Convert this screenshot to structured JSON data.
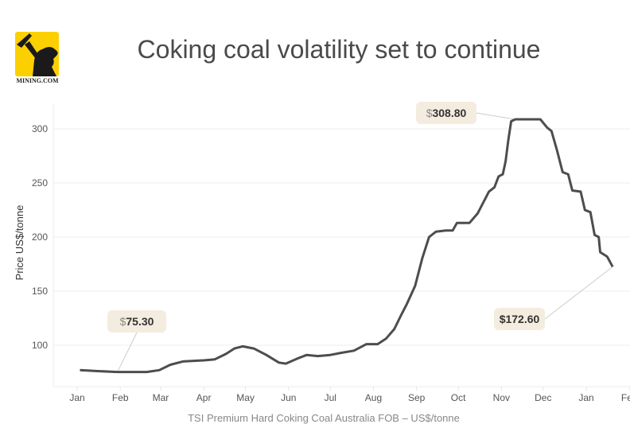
{
  "title": "Coking coal volatility set to continue",
  "logo_text": "MINING.COM",
  "footer": "TSI Premium Hard Coking Coal Australia FOB – US$/tonne",
  "chart_data": {
    "type": "line",
    "title": "Coking coal volatility set to continue",
    "xlabel": "",
    "ylabel": "Price US$/tonne",
    "ylim": [
      62,
      320
    ],
    "yticks": [
      100,
      150,
      200,
      250,
      300
    ],
    "xlim": [
      "2015-12-25",
      "2017-02-08"
    ],
    "xticks": [
      {
        "date": "2016-01-01",
        "label": "Jan"
      },
      {
        "date": "2016-02-01",
        "label": "Feb"
      },
      {
        "date": "2016-03-01",
        "label": "Mar"
      },
      {
        "date": "2016-04-01",
        "label": "Apr"
      },
      {
        "date": "2016-05-01",
        "label": "May"
      },
      {
        "date": "2016-06-01",
        "label": "Jun"
      },
      {
        "date": "2016-07-01",
        "label": "Jul"
      },
      {
        "date": "2016-08-01",
        "label": "Aug"
      },
      {
        "date": "2016-09-01",
        "label": "Sep"
      },
      {
        "date": "2016-10-01",
        "label": "Oct"
      },
      {
        "date": "2016-11-01",
        "label": "Nov"
      },
      {
        "date": "2016-12-01",
        "label": "Dec"
      },
      {
        "date": "2017-01-01",
        "label": "Jan"
      },
      {
        "date": "2017-02-01",
        "label": "Feb"
      }
    ],
    "grid": "horizontal",
    "line_color": "#4d4d4d",
    "series": [
      {
        "x": [
          "2016-01-03",
          "2016-01-17",
          "2016-01-30",
          "2016-02-20",
          "2016-02-29",
          "2016-03-08",
          "2016-03-17",
          "2016-04-01",
          "2016-04-09",
          "2016-04-17",
          "2016-04-23",
          "2016-04-29",
          "2016-05-07",
          "2016-05-16",
          "2016-05-25",
          "2016-05-30",
          "2016-06-08",
          "2016-06-14",
          "2016-06-22",
          "2016-07-01",
          "2016-07-09",
          "2016-07-18",
          "2016-07-27",
          "2016-08-04",
          "2016-08-10",
          "2016-08-16",
          "2016-08-21",
          "2016-08-25",
          "2016-08-31",
          "2016-09-05",
          "2016-09-10",
          "2016-09-15",
          "2016-09-22",
          "2016-09-27",
          "2016-09-30",
          "2016-10-09",
          "2016-10-15",
          "2016-10-19",
          "2016-10-23",
          "2016-10-27",
          "2016-10-30",
          "2016-11-02",
          "2016-11-04",
          "2016-11-06",
          "2016-11-08",
          "2016-11-11",
          "2016-11-29",
          "2016-12-04",
          "2016-12-07",
          "2016-12-11",
          "2016-12-15",
          "2016-12-19",
          "2016-12-22",
          "2016-12-28",
          "2016-12-31",
          "2017-01-04",
          "2017-01-07",
          "2017-01-10",
          "2017-01-11",
          "2017-01-16",
          "2017-01-20"
        ],
        "y": [
          77,
          76,
          75.3,
          75.3,
          77,
          82,
          85,
          86,
          87,
          92,
          97,
          99,
          97,
          91,
          84,
          83,
          88,
          91,
          90,
          91,
          93,
          95,
          101,
          101,
          106,
          115,
          128,
          138,
          155,
          180,
          200,
          205,
          206,
          206,
          213,
          213,
          222,
          232,
          242,
          246,
          256,
          258,
          270,
          290,
          307,
          308.8,
          308.8,
          301,
          298,
          280,
          260,
          258,
          243,
          242,
          225,
          223,
          202,
          200,
          186,
          182,
          172.6
        ]
      }
    ],
    "annotations": [
      {
        "currency": "$",
        "value": "75.30",
        "date": "2016-01-30",
        "y": 75.3
      },
      {
        "currency": "$",
        "value": "308.80",
        "date": "2016-11-11",
        "y": 308.8
      },
      {
        "currency": "$",
        "value": "172.60",
        "date": "2017-01-20",
        "y": 172.6
      }
    ]
  }
}
